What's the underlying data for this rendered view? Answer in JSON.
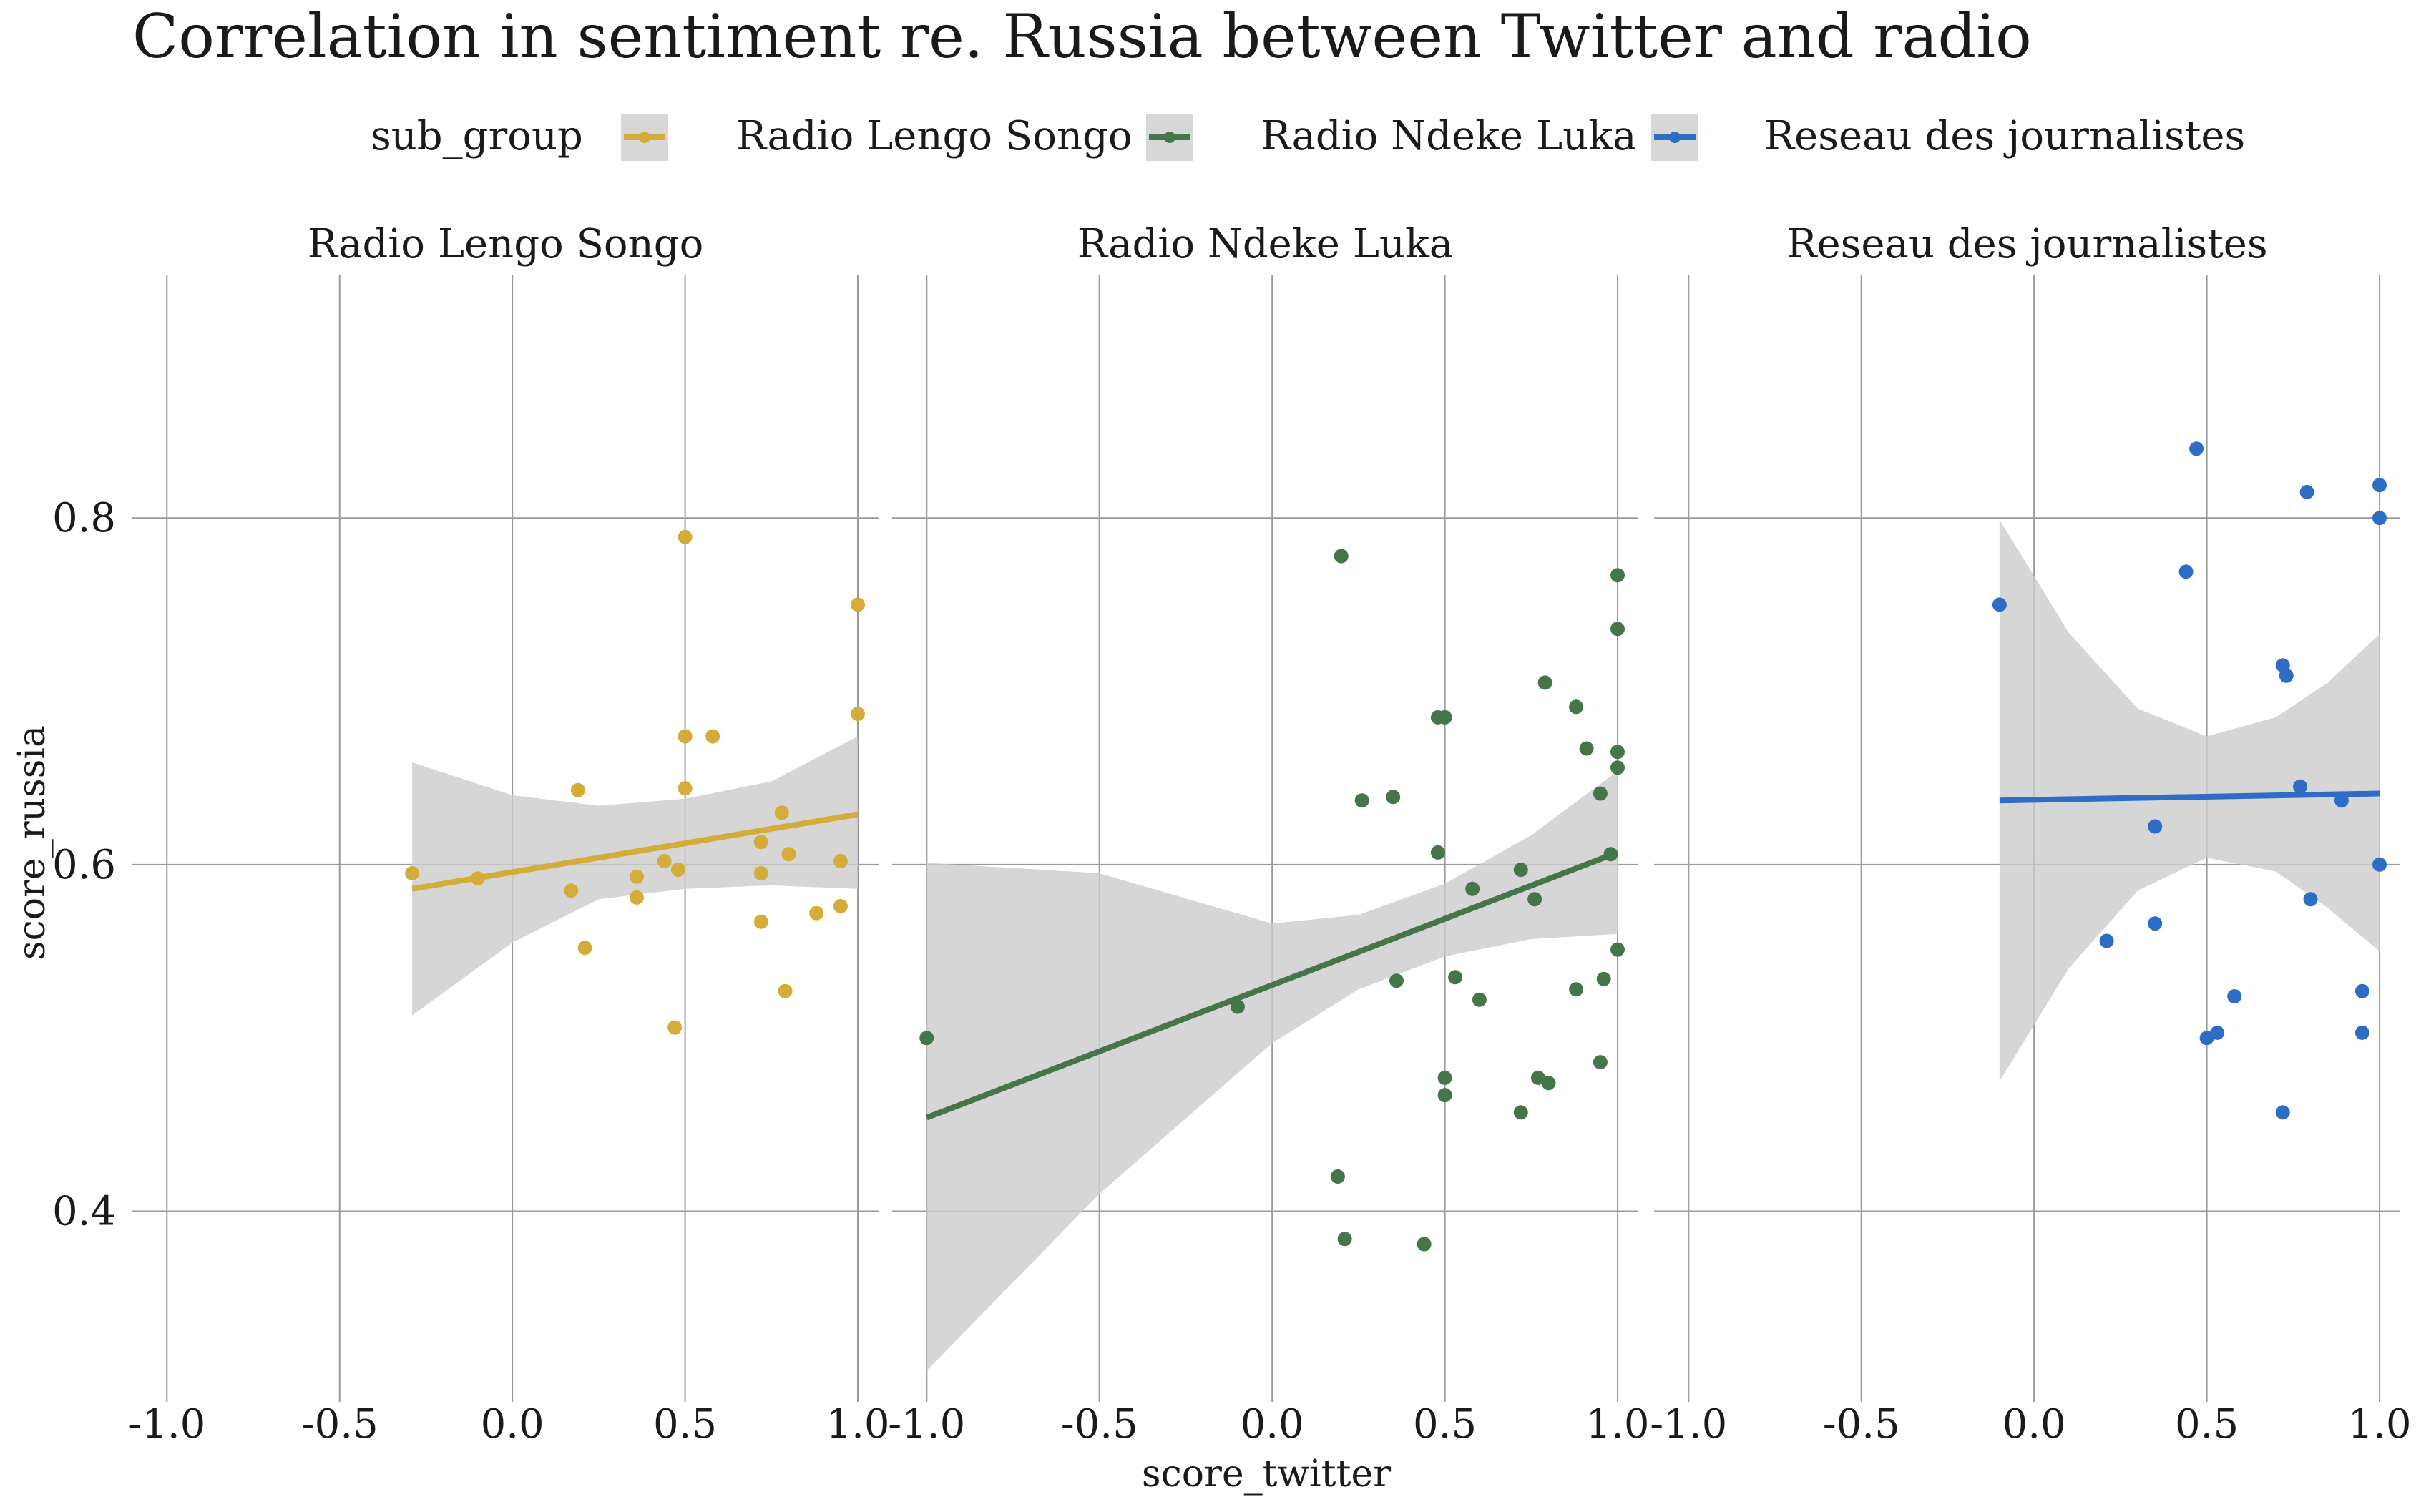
{
  "chart_data": {
    "type": "scatter",
    "title": "Correlation in sentiment re. Russia between Twitter and radio",
    "xlabel": "score_twitter",
    "ylabel": "score_russia",
    "legend": {
      "title": "sub_group",
      "position": "top",
      "entries": [
        "Radio Lengo Songo",
        "Radio Ndeke Luka",
        "Reseau des journalistes"
      ]
    },
    "xlim": [
      -1.1,
      1.06
    ],
    "ylim": [
      0.29,
      0.94
    ],
    "xticks": [
      -1.0,
      -0.5,
      0.0,
      0.5,
      1.0
    ],
    "xtick_labels": [
      "-1.0",
      "-0.5",
      "0.0",
      "0.5",
      "1.0"
    ],
    "yticks": [
      0.4,
      0.6,
      0.8
    ],
    "ytick_labels": [
      "0.4",
      "0.6",
      "0.8"
    ],
    "grid": true,
    "facets": [
      {
        "name": "Radio Lengo Songo",
        "color": "#d4ac3a",
        "trend": {
          "x": [
            -0.29,
            1.0
          ],
          "y": [
            0.586,
            0.629
          ]
        },
        "band": {
          "x": [
            -0.29,
            0.0,
            0.25,
            0.5,
            0.75,
            1.0
          ],
          "lower": [
            0.513,
            0.555,
            0.58,
            0.586,
            0.588,
            0.586
          ],
          "upper": [
            0.659,
            0.64,
            0.634,
            0.638,
            0.648,
            0.674
          ]
        },
        "points": [
          [
            -0.29,
            0.595
          ],
          [
            -0.1,
            0.592
          ],
          [
            0.17,
            0.585
          ],
          [
            0.19,
            0.643
          ],
          [
            0.21,
            0.552
          ],
          [
            0.36,
            0.593
          ],
          [
            0.36,
            0.581
          ],
          [
            0.44,
            0.602
          ],
          [
            0.47,
            0.506
          ],
          [
            0.48,
            0.597
          ],
          [
            0.5,
            0.789
          ],
          [
            0.5,
            0.674
          ],
          [
            0.5,
            0.644
          ],
          [
            0.58,
            0.674
          ],
          [
            0.72,
            0.613
          ],
          [
            0.72,
            0.595
          ],
          [
            0.72,
            0.567
          ],
          [
            0.78,
            0.63
          ],
          [
            0.79,
            0.527
          ],
          [
            0.8,
            0.606
          ],
          [
            0.88,
            0.572
          ],
          [
            0.95,
            0.576
          ],
          [
            0.95,
            0.602
          ],
          [
            1.0,
            0.75
          ],
          [
            1.0,
            0.687
          ]
        ]
      },
      {
        "name": "Radio Ndeke Luka",
        "color": "#44764a",
        "trend": {
          "x": [
            -1.0,
            1.0
          ],
          "y": [
            0.454,
            0.607
          ]
        },
        "band": {
          "x": [
            -1.0,
            -0.5,
            0.0,
            0.25,
            0.5,
            0.75,
            1.0
          ],
          "lower": [
            0.308,
            0.41,
            0.497,
            0.528,
            0.547,
            0.557,
            0.56
          ],
          "upper": [
            0.601,
            0.595,
            0.566,
            0.571,
            0.589,
            0.617,
            0.654
          ]
        },
        "points": [
          [
            -1.0,
            0.5
          ],
          [
            -0.1,
            0.518
          ],
          [
            0.19,
            0.42
          ],
          [
            0.2,
            0.778
          ],
          [
            0.21,
            0.384
          ],
          [
            0.26,
            0.637
          ],
          [
            0.35,
            0.639
          ],
          [
            0.36,
            0.533
          ],
          [
            0.44,
            0.381
          ],
          [
            0.48,
            0.685
          ],
          [
            0.48,
            0.607
          ],
          [
            0.5,
            0.685
          ],
          [
            0.5,
            0.477
          ],
          [
            0.5,
            0.467
          ],
          [
            0.53,
            0.535
          ],
          [
            0.58,
            0.586
          ],
          [
            0.6,
            0.522
          ],
          [
            0.72,
            0.457
          ],
          [
            0.72,
            0.597
          ],
          [
            0.76,
            0.58
          ],
          [
            0.77,
            0.477
          ],
          [
            0.79,
            0.705
          ],
          [
            0.8,
            0.474
          ],
          [
            0.88,
            0.691
          ],
          [
            0.88,
            0.528
          ],
          [
            0.91,
            0.667
          ],
          [
            0.95,
            0.641
          ],
          [
            0.95,
            0.486
          ],
          [
            0.96,
            0.534
          ],
          [
            0.98,
            0.606
          ],
          [
            1.0,
            0.767
          ],
          [
            1.0,
            0.736
          ],
          [
            1.0,
            0.665
          ],
          [
            1.0,
            0.656
          ],
          [
            1.0,
            0.551
          ]
        ]
      },
      {
        "name": "Reseau des journalistes",
        "color": "#2d6dc6",
        "trend": {
          "x": [
            -0.1,
            1.0
          ],
          "y": [
            0.637,
            0.641
          ]
        },
        "band": {
          "x": [
            -0.1,
            0.1,
            0.3,
            0.5,
            0.7,
            0.85,
            1.0
          ],
          "lower": [
            0.475,
            0.54,
            0.585,
            0.604,
            0.596,
            0.575,
            0.55
          ],
          "upper": [
            0.799,
            0.734,
            0.69,
            0.674,
            0.685,
            0.705,
            0.733
          ]
        },
        "points": [
          [
            -0.1,
            0.75
          ],
          [
            0.21,
            0.556
          ],
          [
            0.35,
            0.622
          ],
          [
            0.35,
            0.566
          ],
          [
            0.44,
            0.769
          ],
          [
            0.47,
            0.84
          ],
          [
            0.5,
            0.5
          ],
          [
            0.53,
            0.503
          ],
          [
            0.58,
            0.524
          ],
          [
            0.72,
            0.715
          ],
          [
            0.72,
            0.457
          ],
          [
            0.73,
            0.709
          ],
          [
            0.77,
            0.645
          ],
          [
            0.79,
            0.815
          ],
          [
            0.8,
            0.58
          ],
          [
            0.89,
            0.637
          ],
          [
            0.95,
            0.527
          ],
          [
            0.95,
            0.503
          ],
          [
            1.0,
            0.819
          ],
          [
            1.0,
            0.8
          ],
          [
            1.0,
            0.6
          ]
        ]
      }
    ]
  }
}
